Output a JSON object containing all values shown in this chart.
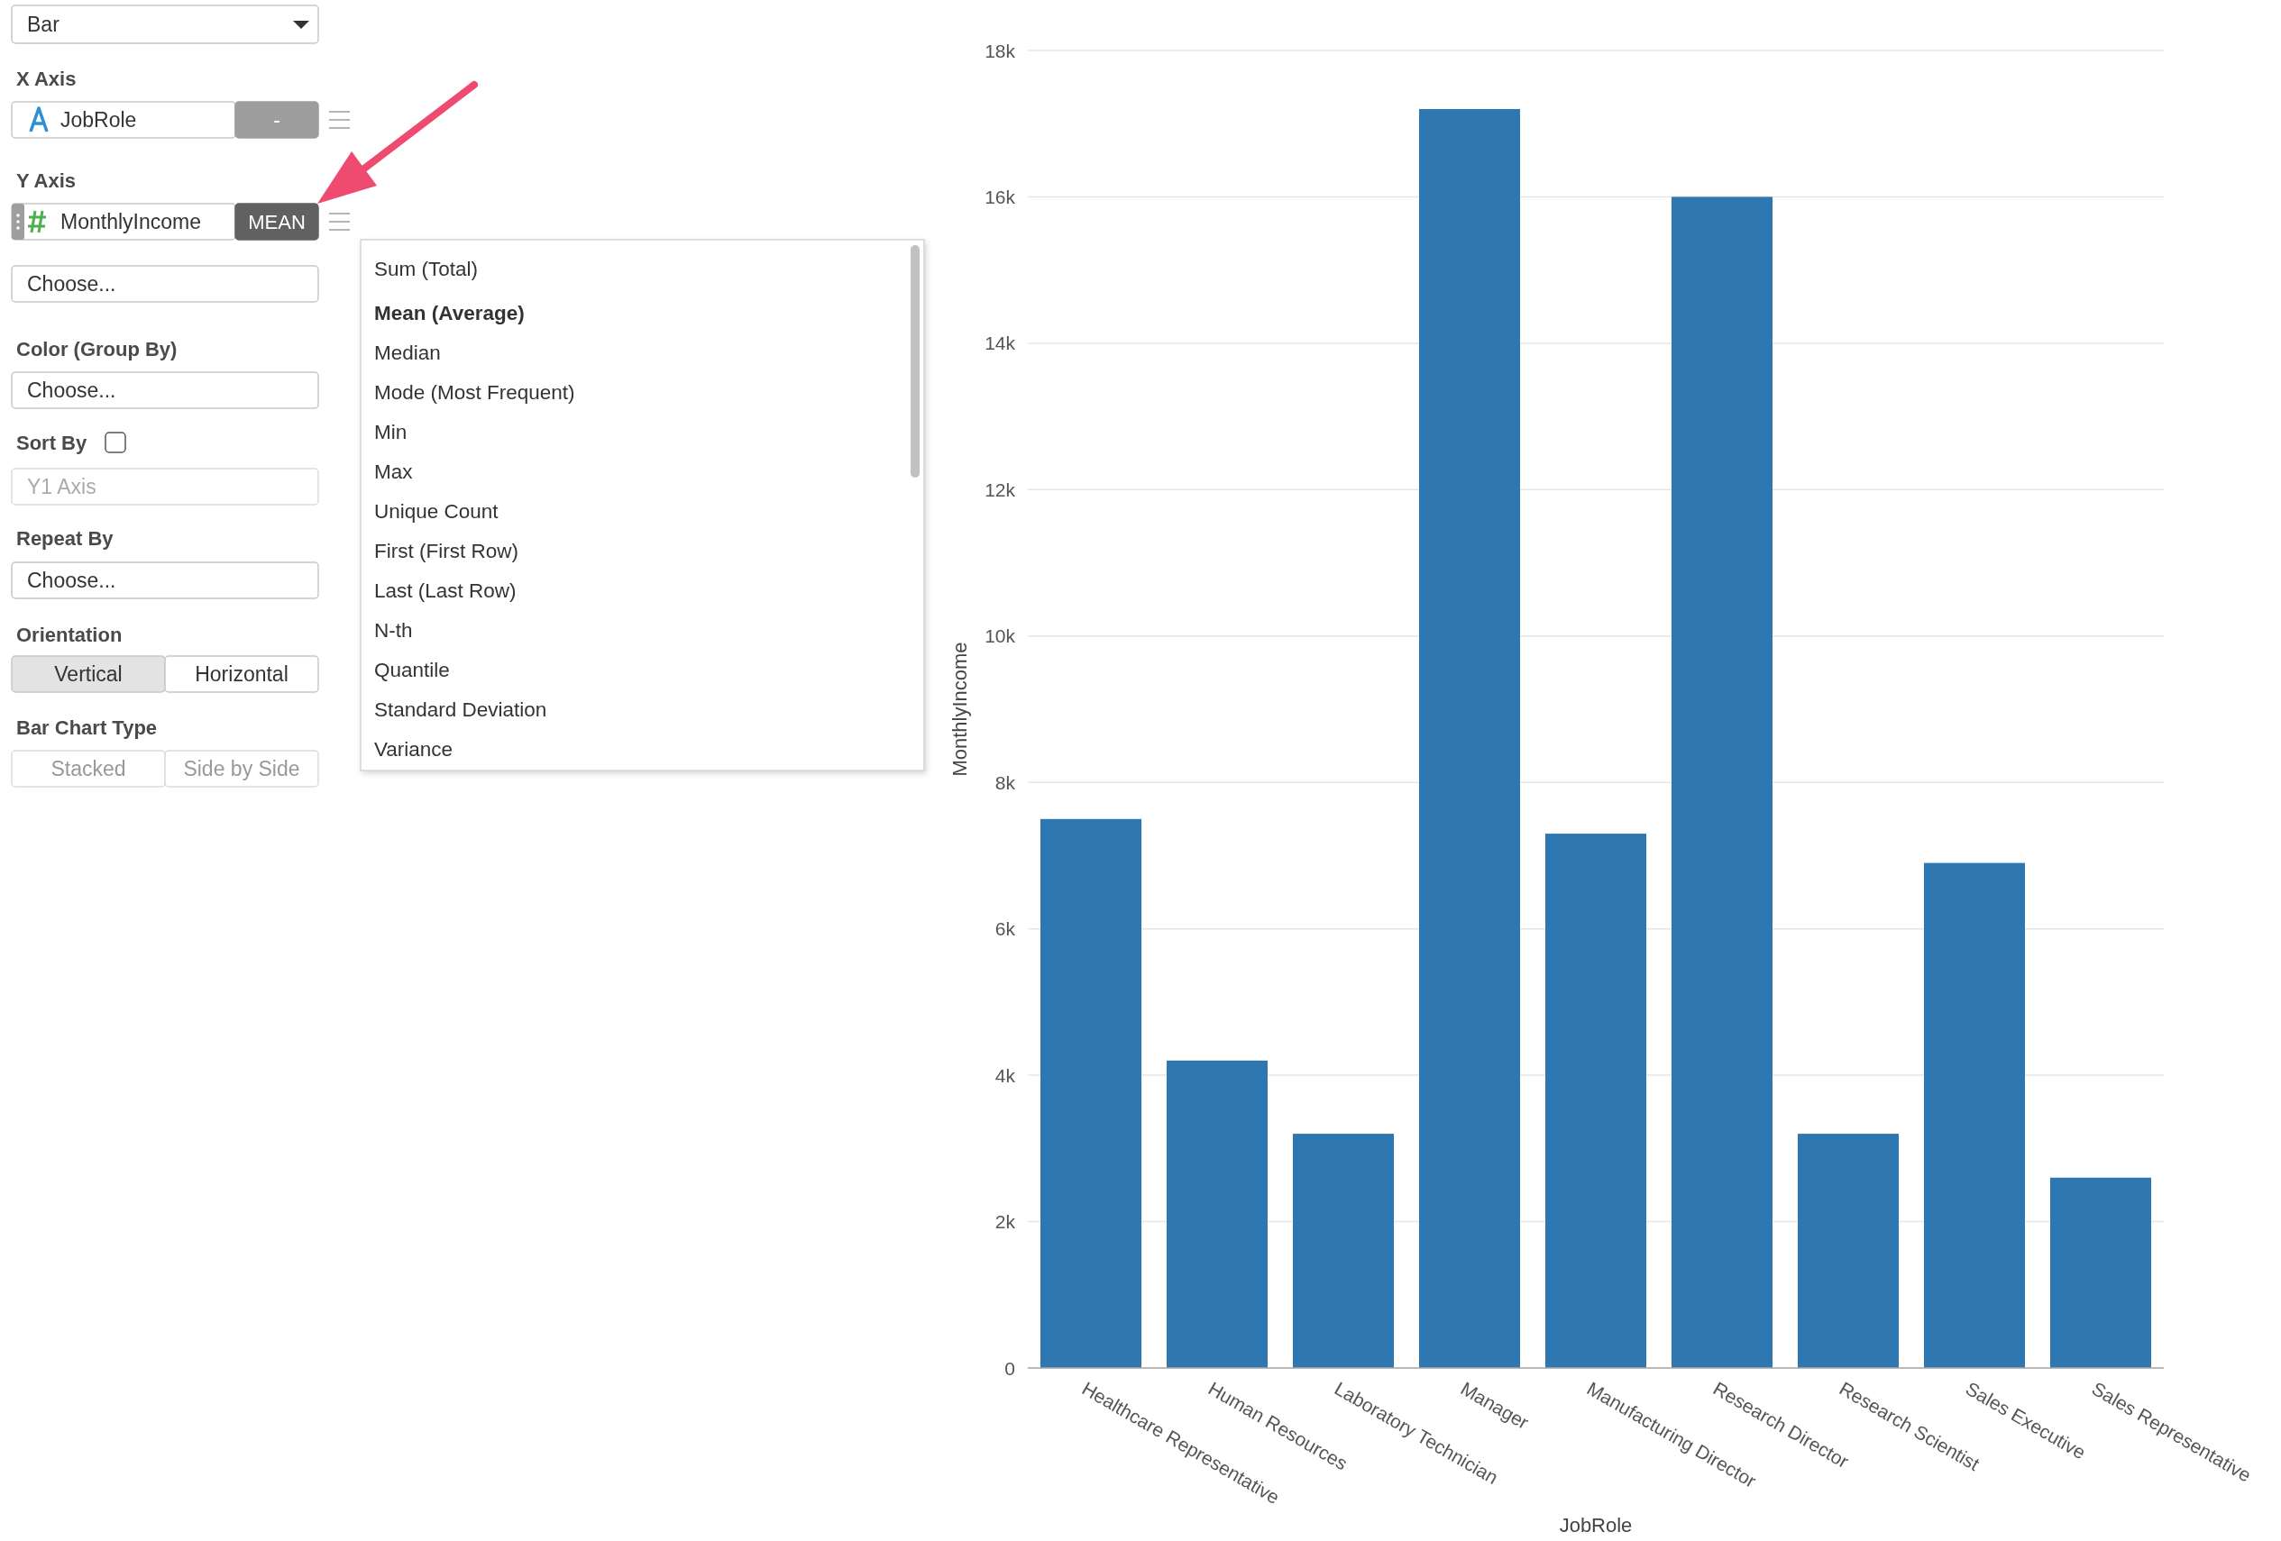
{
  "chart_data": {
    "type": "bar",
    "categories": [
      "Healthcare Representative",
      "Human Resources",
      "Laboratory Technician",
      "Manager",
      "Manufacturing Director",
      "Research Director",
      "Research Scientist",
      "Sales Executive",
      "Sales Representative"
    ],
    "values": [
      7500,
      4200,
      3200,
      17200,
      7300,
      16000,
      3200,
      6900,
      2600
    ],
    "color": "#2e77b0",
    "xlabel": "JobRole",
    "ylabel": "MonthlyIncome",
    "ylim": [
      0,
      18000
    ],
    "yticks": [
      0,
      {
        "value": 2000,
        "label": "2k"
      },
      {
        "value": 4000,
        "label": "4k"
      },
      {
        "value": 6000,
        "label": "6k"
      },
      {
        "value": 8000,
        "label": "8k"
      },
      {
        "value": 10000,
        "label": "10k"
      },
      {
        "value": 12000,
        "label": "12k"
      },
      {
        "value": 14000,
        "label": "14k"
      },
      {
        "value": 16000,
        "label": "16k"
      },
      {
        "value": 18000,
        "label": "18k"
      }
    ],
    "grid": "y",
    "annotations": [
      "Bar",
      "X Axis",
      "JobRole",
      "-",
      "Y Axis",
      "MonthlyIncome",
      "MEAN",
      "Choose...",
      "Color (Group By)",
      "Choose...",
      "Sort By",
      "Y1 Axis",
      "Repeat By",
      "Choose...",
      "Orientation",
      "Vertical",
      "Horizontal",
      "Bar Chart Type",
      "Stacked",
      "Side by Side",
      "Sum (Total)",
      "Mean (Average)",
      "Median",
      "Mode (Most Frequent)",
      "Min",
      "Max",
      "Unique Count",
      "First (First Row)",
      "Last (Last Row)",
      "N-th",
      "Quantile",
      "Standard Deviation",
      "Variance"
    ]
  }
}
